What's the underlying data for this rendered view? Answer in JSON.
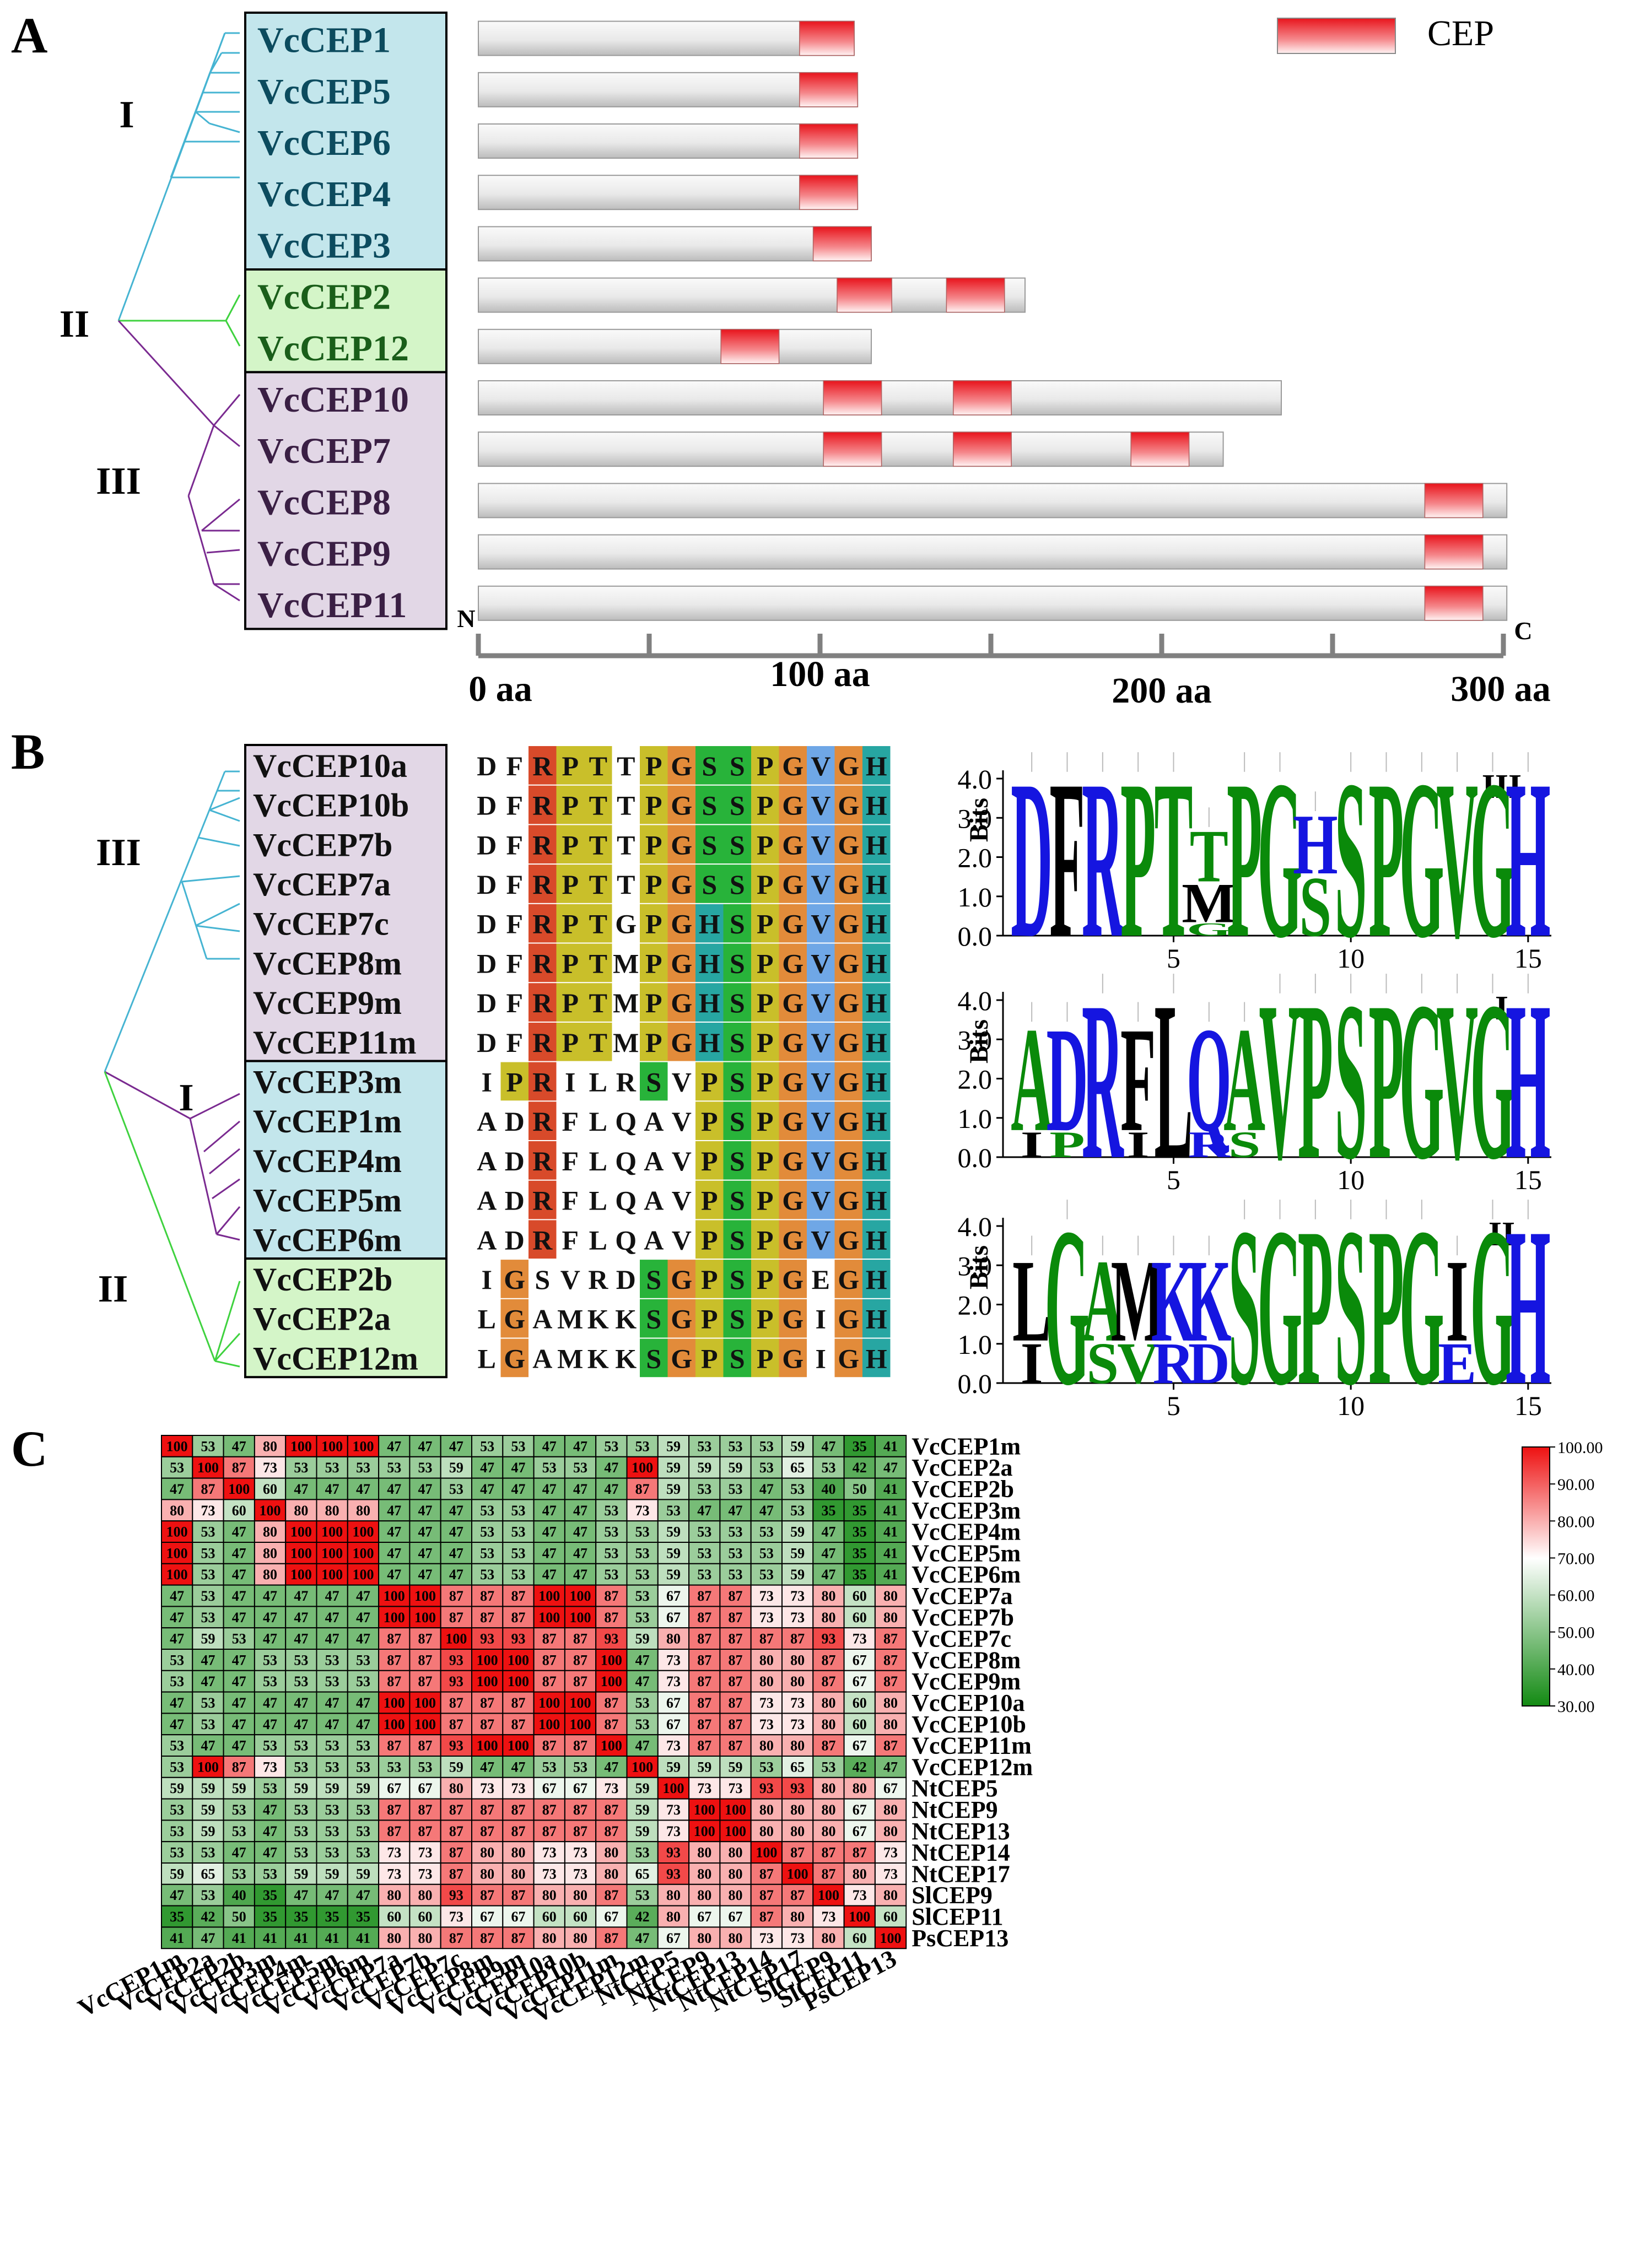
{
  "panels": {
    "a": "A",
    "b": "B",
    "c": "C"
  },
  "panel_a": {
    "legend": "CEP",
    "group_labels": [
      "I",
      "II",
      "III"
    ],
    "axis": {
      "n_label": "N",
      "c_label": "C",
      "ticks": [
        "0 aa",
        "100 aa",
        "200 aa",
        "300 aa"
      ],
      "range_aa": [
        0,
        300
      ]
    },
    "proteins": [
      {
        "name": "VcCEP1",
        "group": "I",
        "length": 110,
        "cep": [
          [
            94,
            110
          ]
        ]
      },
      {
        "name": "VcCEP5",
        "group": "I",
        "length": 111,
        "cep": [
          [
            94,
            111
          ]
        ]
      },
      {
        "name": "VcCEP6",
        "group": "I",
        "length": 111,
        "cep": [
          [
            94,
            111
          ]
        ]
      },
      {
        "name": "VcCEP4",
        "group": "I",
        "length": 111,
        "cep": [
          [
            94,
            111
          ]
        ]
      },
      {
        "name": "VcCEP3",
        "group": "I",
        "length": 115,
        "cep": [
          [
            98,
            115
          ]
        ]
      },
      {
        "name": "VcCEP2",
        "group": "II",
        "length": 160,
        "cep": [
          [
            105,
            121
          ],
          [
            137,
            154
          ]
        ]
      },
      {
        "name": "VcCEP12",
        "group": "II",
        "length": 115,
        "cep": [
          [
            71,
            88
          ]
        ]
      },
      {
        "name": "VcCEP10",
        "group": "III",
        "length": 235,
        "cep": [
          [
            101,
            118
          ],
          [
            139,
            156
          ]
        ]
      },
      {
        "name": "VcCEP7",
        "group": "III",
        "length": 218,
        "cep": [
          [
            101,
            118
          ],
          [
            139,
            156
          ],
          [
            191,
            208
          ]
        ]
      },
      {
        "name": "VcCEP8",
        "group": "III",
        "length": 301,
        "cep": [
          [
            277,
            294
          ]
        ]
      },
      {
        "name": "VcCEP9",
        "group": "III",
        "length": 301,
        "cep": [
          [
            277,
            294
          ]
        ]
      },
      {
        "name": "VcCEP11",
        "group": "III",
        "length": 301,
        "cep": [
          [
            277,
            294
          ]
        ]
      }
    ]
  },
  "panel_b": {
    "group_labels": [
      "III",
      "I",
      "II"
    ],
    "sequences": [
      {
        "name": "VcCEP10a",
        "group": "III",
        "seq": "DFRPTTPGSSPGVGH"
      },
      {
        "name": "VcCEP10b",
        "group": "III",
        "seq": "DFRPTTPGSSPGVGH"
      },
      {
        "name": "VcCEP7b",
        "group": "III",
        "seq": "DFRPTTPGSSPGVGH"
      },
      {
        "name": "VcCEP7a",
        "group": "III",
        "seq": "DFRPTTPGSSPGVGH"
      },
      {
        "name": "VcCEP7c",
        "group": "III",
        "seq": "DFRPTGPGHSPGVGH"
      },
      {
        "name": "VcCEP8m",
        "group": "III",
        "seq": "DFRPTMPGHSPGVGH"
      },
      {
        "name": "VcCEP9m",
        "group": "III",
        "seq": "DFRPTMPGHSPGVGH"
      },
      {
        "name": "VcCEP11m",
        "group": "III",
        "seq": "DFRPTMPGHSPGVGH"
      },
      {
        "name": "VcCEP3m",
        "group": "I",
        "seq": "IPRILRSVPSPGVGH"
      },
      {
        "name": "VcCEP1m",
        "group": "I",
        "seq": "ADRFLQAVPSPGVGH"
      },
      {
        "name": "VcCEP4m",
        "group": "I",
        "seq": "ADRFLQAVPSPGVGH"
      },
      {
        "name": "VcCEP5m",
        "group": "I",
        "seq": "ADRFLQAVPSPGVGH"
      },
      {
        "name": "VcCEP6m",
        "group": "I",
        "seq": "ADRFLQAVPSPGVGH"
      },
      {
        "name": "VcCEP2b",
        "group": "II",
        "seq": "IGSVRDSGPSPGEGH"
      },
      {
        "name": "VcCEP2a",
        "group": "II",
        "seq": "LGAMKKSGPSPGIGH"
      },
      {
        "name": "VcCEP12m",
        "group": "II",
        "seq": "LGAMKKSGPSPGIGH"
      }
    ],
    "logos": [
      {
        "label": "III",
        "ylabel": "Bits",
        "yticks": [
          "0.0",
          "1.0",
          "2.0",
          "3.0",
          "4.0"
        ],
        "xticks": [
          "5",
          "10",
          "15"
        ]
      },
      {
        "label": "I",
        "ylabel": "Bits",
        "yticks": [
          "0.0",
          "1.0",
          "2.0",
          "3.0",
          "4.0"
        ],
        "xticks": [
          "5",
          "10",
          "15"
        ]
      },
      {
        "label": "II",
        "ylabel": "Bits",
        "yticks": [
          "0.0",
          "1.0",
          "2.0",
          "3.0",
          "4.0"
        ],
        "xticks": [
          "5",
          "10",
          "15"
        ]
      }
    ]
  },
  "chart_data": {
    "type": "heatmap",
    "rows": [
      "VcCEP1m",
      "VcCEP2a",
      "VcCEP2b",
      "VcCEP3m",
      "VcCEP4m",
      "VcCEP5m",
      "VcCEP6m",
      "VcCEP7a",
      "VcCEP7b",
      "VcCEP7c",
      "VcCEP8m",
      "VcCEP9m",
      "VcCEP10a",
      "VcCEP10b",
      "VcCEP11m",
      "VcCEP12m",
      "NtCEP5",
      "NtCEP9",
      "NtCEP13",
      "NtCEP14",
      "NtCEP17",
      "SlCEP9",
      "SlCEP11",
      "PsCEP13"
    ],
    "columns": [
      "VcCEP1m",
      "VcCEP2a",
      "VcCEP2b",
      "VcCEP3m",
      "VcCEP4m",
      "VcCEP5m",
      "VcCEP6m",
      "VcCEP7a",
      "VcCEP7b",
      "VcCEP7c",
      "VcCEP8m",
      "VcCEP9m",
      "VcCEP10a",
      "VcCEP10b",
      "VcCEP11m",
      "VcCEP12m",
      "NtCEP5",
      "NtCEP9",
      "NtCEP13",
      "NtCEP14",
      "NtCEP17",
      "SlCEP9",
      "SlCEP11",
      "PsCEP13"
    ],
    "values": [
      [
        100,
        53,
        47,
        80,
        100,
        100,
        100,
        47,
        47,
        47,
        53,
        53,
        47,
        47,
        53,
        53,
        59,
        53,
        53,
        53,
        59,
        47,
        35,
        41
      ],
      [
        53,
        100,
        87,
        73,
        53,
        53,
        53,
        53,
        53,
        59,
        47,
        47,
        53,
        53,
        47,
        100,
        59,
        59,
        59,
        53,
        65,
        53,
        42,
        47
      ],
      [
        47,
        87,
        100,
        60,
        47,
        47,
        47,
        47,
        47,
        53,
        47,
        47,
        47,
        47,
        47,
        87,
        59,
        53,
        53,
        47,
        53,
        40,
        50,
        41
      ],
      [
        80,
        73,
        60,
        100,
        80,
        80,
        80,
        47,
        47,
        47,
        53,
        53,
        47,
        47,
        53,
        73,
        53,
        47,
        47,
        47,
        53,
        35,
        35,
        41
      ],
      [
        100,
        53,
        47,
        80,
        100,
        100,
        100,
        47,
        47,
        47,
        53,
        53,
        47,
        47,
        53,
        53,
        59,
        53,
        53,
        53,
        59,
        47,
        35,
        41
      ],
      [
        100,
        53,
        47,
        80,
        100,
        100,
        100,
        47,
        47,
        47,
        53,
        53,
        47,
        47,
        53,
        53,
        59,
        53,
        53,
        53,
        59,
        47,
        35,
        41
      ],
      [
        100,
        53,
        47,
        80,
        100,
        100,
        100,
        47,
        47,
        47,
        53,
        53,
        47,
        47,
        53,
        53,
        59,
        53,
        53,
        53,
        59,
        47,
        35,
        41
      ],
      [
        47,
        53,
        47,
        47,
        47,
        47,
        47,
        100,
        100,
        87,
        87,
        87,
        100,
        100,
        87,
        53,
        67,
        87,
        87,
        73,
        73,
        80,
        60,
        80
      ],
      [
        47,
        53,
        47,
        47,
        47,
        47,
        47,
        100,
        100,
        87,
        87,
        87,
        100,
        100,
        87,
        53,
        67,
        87,
        87,
        73,
        73,
        80,
        60,
        80
      ],
      [
        47,
        59,
        53,
        47,
        47,
        47,
        47,
        87,
        87,
        100,
        93,
        93,
        87,
        87,
        93,
        59,
        80,
        87,
        87,
        87,
        87,
        93,
        73,
        87
      ],
      [
        53,
        47,
        47,
        53,
        53,
        53,
        53,
        87,
        87,
        93,
        100,
        100,
        87,
        87,
        100,
        47,
        73,
        87,
        87,
        80,
        80,
        87,
        67,
        87
      ],
      [
        53,
        47,
        47,
        53,
        53,
        53,
        53,
        87,
        87,
        93,
        100,
        100,
        87,
        87,
        100,
        47,
        73,
        87,
        87,
        80,
        80,
        87,
        67,
        87
      ],
      [
        47,
        53,
        47,
        47,
        47,
        47,
        47,
        100,
        100,
        87,
        87,
        87,
        100,
        100,
        87,
        53,
        67,
        87,
        87,
        73,
        73,
        80,
        60,
        80
      ],
      [
        47,
        53,
        47,
        47,
        47,
        47,
        47,
        100,
        100,
        87,
        87,
        87,
        100,
        100,
        87,
        53,
        67,
        87,
        87,
        73,
        73,
        80,
        60,
        80
      ],
      [
        53,
        47,
        47,
        53,
        53,
        53,
        53,
        87,
        87,
        93,
        100,
        100,
        87,
        87,
        100,
        47,
        73,
        87,
        87,
        80,
        80,
        87,
        67,
        87
      ],
      [
        53,
        100,
        87,
        73,
        53,
        53,
        53,
        53,
        53,
        59,
        47,
        47,
        53,
        53,
        47,
        100,
        59,
        59,
        59,
        53,
        65,
        53,
        42,
        47
      ],
      [
        59,
        59,
        59,
        53,
        59,
        59,
        59,
        67,
        67,
        80,
        73,
        73,
        67,
        67,
        73,
        59,
        100,
        73,
        73,
        93,
        93,
        80,
        80,
        67
      ],
      [
        53,
        59,
        53,
        47,
        53,
        53,
        53,
        87,
        87,
        87,
        87,
        87,
        87,
        87,
        87,
        59,
        73,
        100,
        100,
        80,
        80,
        80,
        67,
        80
      ],
      [
        53,
        59,
        53,
        47,
        53,
        53,
        53,
        87,
        87,
        87,
        87,
        87,
        87,
        87,
        87,
        59,
        73,
        100,
        100,
        80,
        80,
        80,
        67,
        80
      ],
      [
        53,
        53,
        47,
        47,
        53,
        53,
        53,
        73,
        73,
        87,
        80,
        80,
        73,
        73,
        80,
        53,
        93,
        80,
        80,
        100,
        87,
        87,
        87,
        73
      ],
      [
        59,
        65,
        53,
        53,
        59,
        59,
        59,
        73,
        73,
        87,
        80,
        80,
        73,
        73,
        80,
        65,
        93,
        80,
        80,
        87,
        100,
        87,
        80,
        73
      ],
      [
        47,
        53,
        40,
        35,
        47,
        47,
        47,
        80,
        80,
        93,
        87,
        87,
        80,
        80,
        87,
        53,
        80,
        80,
        80,
        87,
        87,
        100,
        73,
        80
      ],
      [
        35,
        42,
        50,
        35,
        35,
        35,
        35,
        60,
        60,
        73,
        67,
        67,
        60,
        60,
        67,
        42,
        80,
        67,
        67,
        87,
        80,
        73,
        100,
        60
      ],
      [
        41,
        47,
        41,
        41,
        41,
        41,
        41,
        80,
        80,
        87,
        87,
        87,
        80,
        80,
        87,
        47,
        67,
        80,
        80,
        73,
        73,
        80,
        60,
        100
      ]
    ],
    "colorbar": {
      "min": 30,
      "max": 100,
      "ticks": [
        "100.00",
        "90.00",
        "80.00",
        "70.00",
        "60.00",
        "50.00",
        "40.00",
        "30.00"
      ],
      "colors": {
        "low": "#138a13",
        "mid": "#ffffff",
        "high": "#ee1111"
      }
    }
  },
  "colors": {
    "group1": "#c3e6ec",
    "group2": "#d4f5c8",
    "group3": "#e2d7e6",
    "tree1": "#46b4d2",
    "tree2": "#3fd23f",
    "tree3": "#7a2a90"
  }
}
